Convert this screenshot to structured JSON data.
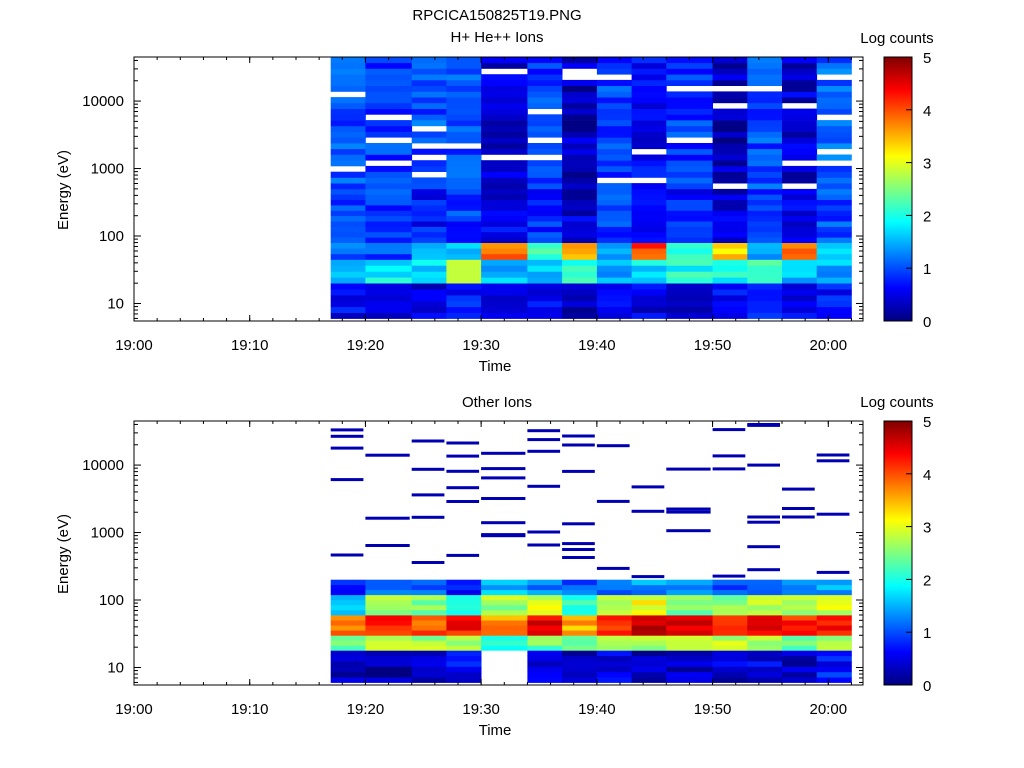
{
  "title": "RPCICA150825T19.PNG",
  "chart_data": [
    {
      "type": "heatmap",
      "title": "H+ He++ Ions",
      "xlabel": "Time",
      "ylabel": "Energy (eV)",
      "x_ticks": [
        "19:00",
        "19:10",
        "19:20",
        "19:30",
        "19:40",
        "19:50",
        "20:00"
      ],
      "x_range": [
        "19:00",
        "20:03"
      ],
      "y_scale": "log",
      "y_ticks": [
        "10",
        "100",
        "1000",
        "10000"
      ],
      "y_range": [
        5.5,
        45000
      ],
      "colorbar": {
        "label": "Log counts",
        "ticks": [
          "0",
          "1",
          "2",
          "3",
          "4",
          "5"
        ],
        "range": [
          0,
          5
        ]
      },
      "time_bins": [
        "19:17",
        "19:20",
        "19:24",
        "19:27",
        "19:30",
        "19:34",
        "19:37",
        "19:40",
        "19:43",
        "19:46",
        "19:50",
        "19:53",
        "19:56",
        "19:59",
        "20:02"
      ],
      "energy_bands": [
        {
          "energy_range": [
            6,
            20
          ],
          "log_counts": [
            0.6,
            0.4,
            0.5,
            0.7,
            0.3,
            0.6,
            0.2,
            0.7,
            0.5,
            0.4,
            0.6,
            0.7,
            0.5,
            0.7
          ]
        },
        {
          "energy_range": [
            20,
            45
          ],
          "log_counts": [
            1.7,
            1.8,
            1.7,
            2.6,
            1.6,
            1.7,
            2.1,
            1.4,
            1.8,
            2.0,
            1.9,
            2.3,
            1.6,
            1.5
          ]
        },
        {
          "energy_range": [
            45,
            80
          ],
          "log_counts": [
            1.1,
            1.0,
            1.3,
            1.6,
            3.8,
            2.1,
            3.5,
            1.4,
            4.0,
            1.9,
            3.3,
            1.5,
            3.7,
            1.8
          ]
        },
        {
          "energy_range": [
            80,
            500
          ],
          "log_counts": [
            1.0,
            0.9,
            0.7,
            0.9,
            0.5,
            0.8,
            0.4,
            0.9,
            0.6,
            0.7,
            0.4,
            0.8,
            0.5,
            1.0
          ]
        },
        {
          "energy_range": [
            500,
            45000
          ],
          "log_counts": [
            1.0,
            0.9,
            1.0,
            1.0,
            0.4,
            0.9,
            0.3,
            0.9,
            0.6,
            0.9,
            0.3,
            1.0,
            0.4,
            1.1
          ]
        }
      ]
    },
    {
      "type": "heatmap",
      "title": "Other Ions",
      "xlabel": "Time",
      "ylabel": "Energy (eV)",
      "x_ticks": [
        "19:00",
        "19:10",
        "19:20",
        "19:30",
        "19:40",
        "19:50",
        "20:00"
      ],
      "x_range": [
        "19:00",
        "20:03"
      ],
      "y_scale": "log",
      "y_ticks": [
        "10",
        "100",
        "1000",
        "10000"
      ],
      "y_range": [
        5.5,
        45000
      ],
      "colorbar": {
        "label": "Log counts",
        "ticks": [
          "0",
          "1",
          "2",
          "3",
          "4",
          "5"
        ],
        "range": [
          0,
          5
        ]
      },
      "time_bins": [
        "19:17",
        "19:20",
        "19:24",
        "19:27",
        "19:30",
        "19:34",
        "19:37",
        "19:40",
        "19:43",
        "19:46",
        "19:50",
        "19:53",
        "19:56",
        "19:59",
        "20:02"
      ],
      "energy_bands": [
        {
          "energy_range": [
            6,
            18
          ],
          "log_counts": [
            0.3,
            0.2,
            0.4,
            0.6,
            null,
            0.4,
            0.3,
            0.5,
            0.3,
            0.4,
            0.4,
            0.5,
            0.3,
            0.7
          ]
        },
        {
          "energy_range": [
            18,
            30
          ],
          "log_counts": [
            2.3,
            2.8,
            2.7,
            2.8,
            2.0,
            2.4,
            2.3,
            2.6,
            2.6,
            2.7,
            2.8,
            2.6,
            2.4,
            2.8
          ]
        },
        {
          "energy_range": [
            30,
            60
          ],
          "log_counts": [
            3.9,
            4.3,
            4.0,
            4.3,
            3.6,
            4.4,
            3.5,
            4.3,
            4.6,
            4.4,
            4.2,
            4.6,
            4.2,
            4.3
          ]
        },
        {
          "energy_range": [
            60,
            120
          ],
          "log_counts": [
            1.6,
            2.7,
            2.5,
            2.0,
            2.7,
            3.0,
            2.0,
            2.9,
            3.0,
            2.4,
            2.5,
            2.8,
            2.6,
            2.9
          ]
        },
        {
          "energy_range": [
            120,
            200
          ],
          "log_counts": [
            0.7,
            1.0,
            1.1,
            0.6,
            1.5,
            1.3,
            1.1,
            1.2,
            1.4,
            1.4,
            1.1,
            1.2,
            1.2,
            1.4
          ]
        }
      ],
      "sparse_high_energy_counts": true
    }
  ]
}
